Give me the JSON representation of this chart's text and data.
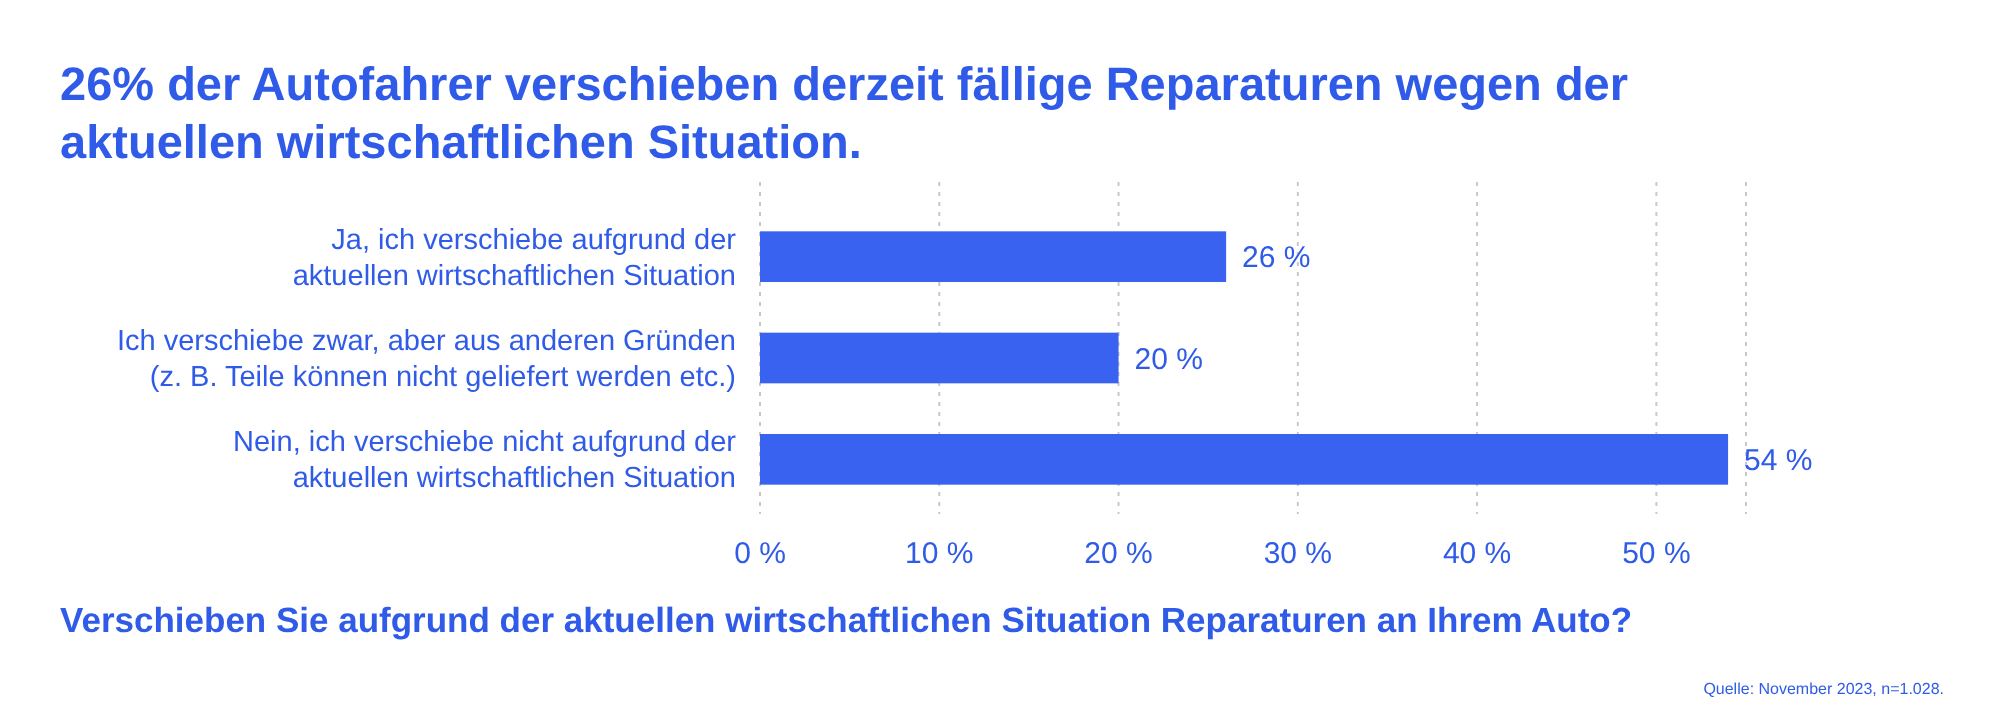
{
  "chart_data": {
    "type": "bar",
    "orientation": "horizontal",
    "title": "26% der Autofahrer verschieben derzeit fällige Reparaturen wegen der aktuellen wirtschaftlichen Situation.",
    "subtitle": "Verschieben Sie aufgrund der aktuellen wirtschaftlichen Situation Reparaturen an Ihrem Auto?",
    "categories": [
      "Ja, ich verschiebe aufgrund der\naktuellen wirtschaftlichen Situation",
      "Ich verschiebe zwar, aber aus anderen Gründen\n(z. B. Teile können nicht geliefert werden etc.)",
      "Nein, ich verschiebe nicht aufgrund der\naktuellen wirtschaftlichen Situation"
    ],
    "values": [
      26,
      20,
      54
    ],
    "value_labels": [
      "26 %",
      "20 %",
      "54 %"
    ],
    "color": "#3a62f0",
    "xlim": [
      0,
      55
    ],
    "xticks": [
      {
        "value": 0,
        "label": "0 %"
      },
      {
        "value": 10,
        "label": "10 %"
      },
      {
        "value": 20,
        "label": "20 %"
      },
      {
        "value": 30,
        "label": "30 %"
      },
      {
        "value": 40,
        "label": "40 %"
      },
      {
        "value": 50,
        "label": "50 %"
      },
      {
        "value": 55,
        "label": null
      }
    ],
    "grid": "x",
    "annotations": [
      "Quelle: November 2023, n=1.028."
    ]
  }
}
